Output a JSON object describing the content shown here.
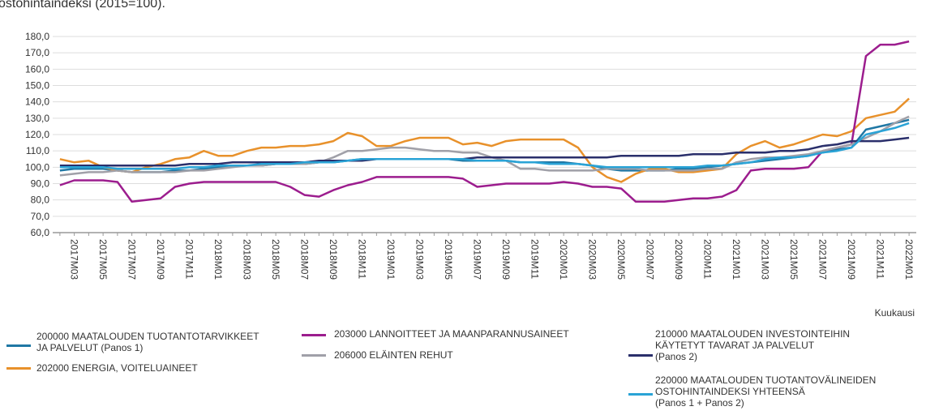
{
  "chart_data": {
    "type": "line",
    "title": "ostohintaindeksi (2015=100).",
    "x_label": "Kuukausi",
    "categories": [
      null,
      "2017M03",
      null,
      "2017M05",
      null,
      "2017M07",
      null,
      "2017M09",
      null,
      "2017M11",
      null,
      "2018M01",
      null,
      "2018M03",
      null,
      "2018M05",
      null,
      "2018M07",
      null,
      "2018M09",
      null,
      "2018M11",
      null,
      "2019M01",
      null,
      "2019M03",
      null,
      "2019M05",
      null,
      "2019M07",
      null,
      "2019M09",
      null,
      "2019M11",
      null,
      "2020M01",
      null,
      "2020M03",
      null,
      "2020M05",
      null,
      "2020M07",
      null,
      "2020M09",
      null,
      "2020M11",
      null,
      "2021M01",
      null,
      "2021M03",
      null,
      "2021M05",
      null,
      "2021M07",
      null,
      "2021M09",
      null,
      "2021M11",
      null,
      "2022M01"
    ],
    "ylim": [
      60,
      180
    ],
    "yticks": [
      {
        "value": 60,
        "label": "60,0"
      },
      {
        "value": 70,
        "label": "70,0"
      },
      {
        "value": 80,
        "label": "80,0"
      },
      {
        "value": 90,
        "label": "90,0"
      },
      {
        "value": 100,
        "label": "100,0"
      },
      {
        "value": 110,
        "label": "110,0"
      },
      {
        "value": 120,
        "label": "120,0"
      },
      {
        "value": 130,
        "label": "130,0"
      },
      {
        "value": 140,
        "label": "140,0"
      },
      {
        "value": 150,
        "label": "150,0"
      },
      {
        "value": 160,
        "label": "160,0"
      },
      {
        "value": 170,
        "label": "170,0"
      },
      {
        "value": 180,
        "label": "180,0"
      }
    ],
    "grid": true,
    "series": [
      {
        "name": "200000 MAATALOUDEN TUOTANTOTARVIKKEET\nJA PALVELUT (Panos 1)",
        "color": "#1f77a4",
        "values": [
          98,
          99,
          99,
          99,
          98,
          97,
          97,
          97,
          98,
          98,
          99,
          100,
          101,
          101,
          101,
          102,
          102,
          102,
          103,
          103,
          104,
          105,
          105,
          105,
          105,
          105,
          105,
          105,
          104,
          104,
          104,
          104,
          103,
          103,
          103,
          103,
          102,
          101,
          99,
          98,
          98,
          98,
          98,
          99,
          99,
          100,
          101,
          102,
          103,
          104,
          105,
          106,
          107,
          109,
          111,
          112,
          123,
          125,
          127,
          129
        ]
      },
      {
        "name": "202000 ENERGIA, VOITELUAINEET",
        "color": "#e8912b",
        "values": [
          105,
          103,
          104,
          100,
          98,
          97,
          100,
          102,
          105,
          106,
          110,
          107,
          107,
          110,
          112,
          112,
          113,
          113,
          114,
          116,
          121,
          119,
          113,
          113,
          116,
          118,
          118,
          118,
          114,
          115,
          113,
          116,
          117,
          117,
          117,
          117,
          112,
          100,
          94,
          91,
          96,
          99,
          99,
          97,
          97,
          98,
          99,
          108,
          113,
          116,
          112,
          114,
          117,
          120,
          119,
          122,
          130,
          132,
          134,
          142
        ]
      },
      {
        "name": "203000 LANNOITTEET JA MAANPARANNUSAINEET",
        "color": "#9c1d8e",
        "values": [
          89,
          92,
          92,
          92,
          91,
          79,
          80,
          81,
          88,
          90,
          91,
          91,
          91,
          91,
          91,
          91,
          88,
          83,
          82,
          86,
          89,
          91,
          94,
          94,
          94,
          94,
          94,
          94,
          93,
          88,
          89,
          90,
          90,
          90,
          90,
          91,
          90,
          88,
          88,
          87,
          79,
          79,
          79,
          80,
          81,
          81,
          82,
          86,
          98,
          99,
          99,
          99,
          100,
          110,
          112,
          114,
          168,
          175,
          175,
          177
        ]
      },
      {
        "name": "206000 ELÄINTEN REHUT",
        "color": "#a0a0a8",
        "values": [
          95,
          96,
          97,
          97,
          98,
          97,
          97,
          97,
          97,
          98,
          98,
          99,
          100,
          101,
          101,
          102,
          102,
          102,
          103,
          106,
          110,
          110,
          111,
          112,
          112,
          111,
          110,
          110,
          109,
          109,
          106,
          104,
          99,
          99,
          98,
          98,
          98,
          98,
          99,
          99,
          99,
          98,
          98,
          98,
          98,
          99,
          99,
          103,
          105,
          106,
          106,
          107,
          108,
          110,
          112,
          114,
          118,
          122,
          127,
          131
        ]
      },
      {
        "name": "210000 MAATALOUDEN INVESTOINTEIHIN\nKÄYTETYT TAVARAT JA PALVELUT\n(Panos 2)",
        "color": "#2a2f6b",
        "values": [
          101,
          101,
          101,
          101,
          101,
          101,
          101,
          101,
          101,
          102,
          102,
          102,
          103,
          103,
          103,
          103,
          103,
          103,
          104,
          104,
          104,
          104,
          105,
          105,
          105,
          105,
          105,
          105,
          105,
          106,
          106,
          106,
          106,
          106,
          106,
          106,
          106,
          106,
          106,
          107,
          107,
          107,
          107,
          107,
          108,
          108,
          108,
          109,
          109,
          109,
          110,
          110,
          111,
          113,
          114,
          116,
          116,
          116,
          117,
          118
        ]
      },
      {
        "name": "220000 MAATALOUDEN TUOTANTOVÄLINEIDEN\nOSTOHINTAINDEKSI YHTEENSÄ\n(Panos 1 + Panos 2)",
        "color": "#2aa3d6",
        "values": [
          100,
          100,
          100,
          100,
          99,
          99,
          99,
          99,
          99,
          100,
          100,
          101,
          101,
          101,
          102,
          102,
          102,
          103,
          103,
          103,
          104,
          105,
          105,
          105,
          105,
          105,
          105,
          105,
          105,
          104,
          104,
          104,
          103,
          103,
          102,
          102,
          102,
          101,
          100,
          100,
          100,
          100,
          100,
          100,
          100,
          101,
          101,
          102,
          103,
          105,
          106,
          106,
          107,
          109,
          110,
          112,
          120,
          122,
          124,
          127
        ]
      }
    ]
  }
}
